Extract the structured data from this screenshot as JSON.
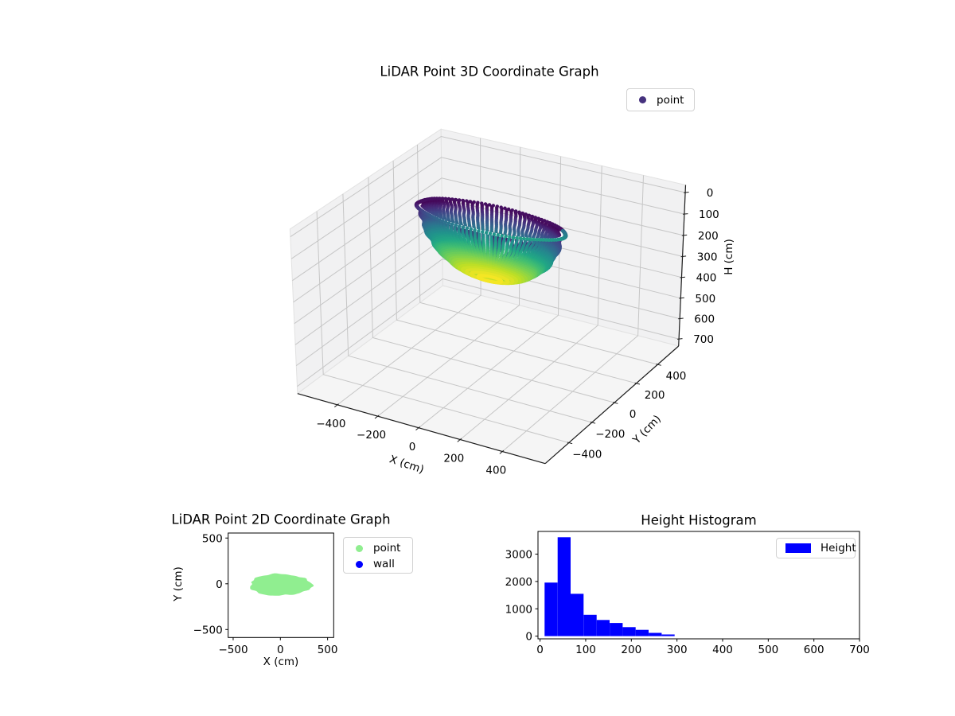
{
  "figure": {
    "background": "#ffffff"
  },
  "chart_data": [
    {
      "id": "plot3d",
      "type": "scatter3d",
      "title": "LiDAR Point 3D Coordinate Graph",
      "xlabel": "X (cm)",
      "ylabel": "Y (cm)",
      "zlabel": "H (cm)",
      "xlim": [
        -600,
        600
      ],
      "ylim": [
        -600,
        600
      ],
      "zlim": [
        -35,
        735
      ],
      "zaxis_inverted": true,
      "xticks": [
        -400,
        -200,
        0,
        200,
        400
      ],
      "yticks": [
        -400,
        -200,
        0,
        200,
        400
      ],
      "zticks": [
        0,
        100,
        200,
        300,
        400,
        500,
        600,
        700
      ],
      "view": {
        "elev": 30,
        "azim": -60
      },
      "legend": [
        {
          "label": "point",
          "color": "#46327e"
        }
      ],
      "legend_position": "upper right",
      "grid": true,
      "grid_color": "#c6c6c6",
      "pane_wall_color": "#f1f1f2",
      "pane_floor_color": "#f5f5f5",
      "colormap": "viridis",
      "colormap_stops": [
        "#440154",
        "#482475",
        "#414487",
        "#355f8d",
        "#2a788e",
        "#21918c",
        "#22a884",
        "#44bf70",
        "#7ad151",
        "#bddf26",
        "#fde725"
      ],
      "point_cloud": {
        "shape": "bowl",
        "center_xy": [
          0,
          -10
        ],
        "radius_x_cm": 330,
        "radius_y_cm": 118,
        "h_rim_cm": 20,
        "h_deepest_cm": 300,
        "color_by": "H",
        "rim_highlight_gap": true
      }
    },
    {
      "id": "plot2d",
      "type": "scatter",
      "title": "LiDAR Point 2D Coordinate Graph",
      "xlabel": "X (cm)",
      "ylabel": "Y (cm)",
      "xticks": [
        -500,
        0,
        500
      ],
      "yticks": [
        500,
        0,
        -500
      ],
      "xlim": [
        -553,
        562
      ],
      "ylim": [
        -590,
        552
      ],
      "legend": [
        {
          "label": "point",
          "color": "#90ee90"
        },
        {
          "label": "wall",
          "color": "#0000ff"
        }
      ],
      "series": [
        {
          "name": "point",
          "color": "#90ee90",
          "blob": {
            "center": [
              0,
              -12
            ],
            "radius_x": 327,
            "radius_y": 118
          }
        },
        {
          "name": "wall",
          "color": "#0000ff",
          "points": []
        }
      ]
    },
    {
      "id": "histogram",
      "type": "bar",
      "title": "Height Histogram",
      "xlabel": "",
      "ylabel": "",
      "xticks": [
        0,
        100,
        200,
        300,
        400,
        500,
        600,
        700
      ],
      "yticks": [
        0,
        1000,
        2000,
        3000
      ],
      "xlim": [
        -4.5,
        700
      ],
      "ylim": [
        -100,
        3830
      ],
      "bin_edges": [
        10,
        38.5,
        67,
        95.5,
        124,
        152.5,
        181,
        209.5,
        238,
        266.5,
        295
      ],
      "counts": [
        1960,
        3620,
        1550,
        780,
        590,
        480,
        330,
        230,
        120,
        60
      ],
      "bar_color": "#0000ff",
      "legend": [
        {
          "label": "Height",
          "color": "#0000ff"
        }
      ],
      "legend_position": "upper right"
    }
  ]
}
